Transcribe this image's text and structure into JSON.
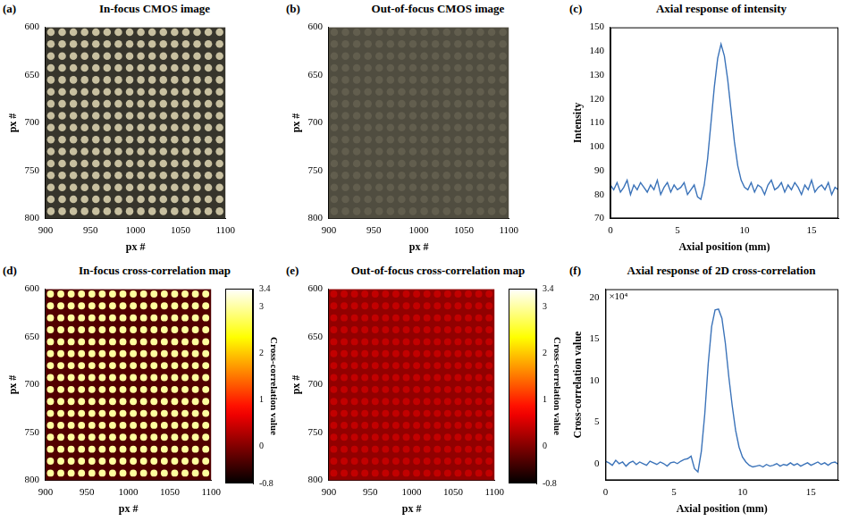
{
  "chart_data": [
    {
      "panel": "(a)",
      "type": "image",
      "title": "In-focus CMOS image",
      "xlabel": "px #",
      "ylabel": "px #",
      "xlim": [
        900,
        1100
      ],
      "xticks": [
        900,
        950,
        1000,
        1050,
        1100
      ],
      "ylim": [
        600,
        800
      ],
      "yticks": [
        600,
        650,
        700,
        750,
        800
      ],
      "grid": false,
      "spot_x": [
        906,
        918.5,
        931,
        943.5,
        956,
        968.5,
        981,
        993.5,
        1006,
        1018.5,
        1031,
        1043.5,
        1056,
        1068.5,
        1081,
        1093.5
      ],
      "spot_y": [
        605,
        617.5,
        630,
        642.5,
        655,
        667.5,
        680,
        692.5,
        705,
        717.5,
        730,
        742.5,
        755,
        767.5,
        780,
        792.5
      ],
      "spot_intensity": 200,
      "background_intensity": 55
    },
    {
      "panel": "(b)",
      "type": "image",
      "title": "Out-of-focus CMOS image",
      "xlabel": "px #",
      "ylabel": "px #",
      "xlim": [
        900,
        1100
      ],
      "xticks": [
        900,
        950,
        1000,
        1050,
        1100
      ],
      "ylim": [
        600,
        800
      ],
      "yticks": [
        600,
        650,
        700,
        750,
        800
      ],
      "grid": false,
      "spot_x": [
        906,
        918.5,
        931,
        943.5,
        956,
        968.5,
        981,
        993.5,
        1006,
        1018.5,
        1031,
        1043.5,
        1056,
        1068.5,
        1081,
        1093.5
      ],
      "spot_y": [
        605,
        617.5,
        630,
        642.5,
        655,
        667.5,
        680,
        692.5,
        705,
        717.5,
        730,
        742.5,
        755,
        767.5,
        780,
        792.5
      ],
      "spot_intensity": 98,
      "background_intensity": 80
    },
    {
      "panel": "(c)",
      "type": "line",
      "title": "Axial response of intensity",
      "xlabel": "Axial position (mm)",
      "ylabel": "Intensity",
      "xlim": [
        0,
        17
      ],
      "xticks": [
        0,
        5,
        10,
        15
      ],
      "ylim": [
        70,
        150
      ],
      "yticks": [
        70,
        80,
        90,
        100,
        110,
        120,
        130,
        140,
        150
      ],
      "grid": false,
      "color": "#3b73b9",
      "x": [
        0,
        0.25,
        0.5,
        0.75,
        1,
        1.25,
        1.5,
        1.75,
        2,
        2.25,
        2.5,
        2.75,
        3,
        3.25,
        3.5,
        3.75,
        4,
        4.25,
        4.5,
        4.75,
        5,
        5.25,
        5.5,
        5.75,
        6,
        6.25,
        6.5,
        6.75,
        7,
        7.25,
        7.5,
        7.75,
        8,
        8.25,
        8.5,
        8.75,
        9,
        9.25,
        9.5,
        9.75,
        10,
        10.25,
        10.5,
        10.75,
        11,
        11.25,
        11.5,
        11.75,
        12,
        12.25,
        12.5,
        12.75,
        13,
        13.25,
        13.5,
        13.75,
        14,
        14.25,
        14.5,
        14.75,
        15,
        15.25,
        15.5,
        15.75,
        16,
        16.25,
        16.5,
        16.75,
        17
      ],
      "values": [
        84,
        82,
        85,
        81,
        83,
        86,
        80,
        84,
        82,
        85,
        83,
        81,
        84,
        82,
        86,
        80,
        83,
        85,
        81,
        84,
        82,
        83,
        85,
        80,
        82,
        84,
        79,
        78,
        84,
        95,
        110,
        125,
        137,
        143,
        138,
        128,
        115,
        102,
        92,
        86,
        83,
        82,
        85,
        81,
        84,
        83,
        80,
        84,
        86,
        82,
        83,
        85,
        81,
        84,
        82,
        85,
        83,
        80,
        84,
        82,
        86,
        81,
        83,
        84,
        82,
        85,
        80,
        83,
        82
      ]
    },
    {
      "panel": "(d)",
      "type": "heatmap",
      "title": "In-focus cross-correlation map",
      "xlabel": "px #",
      "ylabel": "px #",
      "xlim": [
        900,
        1100
      ],
      "xticks": [
        900,
        950,
        1000,
        1050,
        1100
      ],
      "ylim": [
        600,
        800
      ],
      "yticks": [
        600,
        650,
        700,
        750,
        800
      ],
      "grid": false,
      "spot_x": [
        906,
        918.5,
        931,
        943.5,
        956,
        968.5,
        981,
        993.5,
        1006,
        1018.5,
        1031,
        1043.5,
        1056,
        1068.5,
        1081,
        1093.5
      ],
      "spot_y": [
        605,
        617.5,
        630,
        642.5,
        655,
        667.5,
        680,
        692.5,
        705,
        717.5,
        730,
        742.5,
        755,
        767.5,
        780,
        792.5
      ],
      "spot_value": 3.0,
      "background_value": -0.3,
      "colorbar": {
        "label": "Cross-correlation value",
        "range": [
          -0.8,
          3.4
        ],
        "ticks": [
          -0.8,
          0,
          1,
          2,
          3,
          3.4
        ]
      }
    },
    {
      "panel": "(e)",
      "type": "heatmap",
      "title": "Out-of-focus cross-correlation map",
      "xlabel": "px #",
      "ylabel": "px #",
      "xlim": [
        900,
        1100
      ],
      "xticks": [
        900,
        950,
        1000,
        1050,
        1100
      ],
      "ylim": [
        600,
        800
      ],
      "yticks": [
        600,
        650,
        700,
        750,
        800
      ],
      "grid": false,
      "spot_x": [
        906,
        918.5,
        931,
        943.5,
        956,
        968.5,
        981,
        993.5,
        1006,
        1018.5,
        1031,
        1043.5,
        1056,
        1068.5,
        1081,
        1093.5
      ],
      "spot_y": [
        605,
        617.5,
        630,
        642.5,
        655,
        667.5,
        680,
        692.5,
        705,
        717.5,
        730,
        742.5,
        755,
        767.5,
        780,
        792.5
      ],
      "spot_value": 0.4,
      "background_value": 0.1,
      "colorbar": {
        "label": "Cross-correlation value",
        "range": [
          -0.8,
          3.4
        ],
        "ticks": [
          -0.8,
          0,
          1,
          2,
          3,
          3.4
        ]
      }
    },
    {
      "panel": "(f)",
      "type": "line",
      "title": "Axial response of 2D cross-correlation",
      "xlabel": "Axial position (mm)",
      "ylabel": "Cross-correlation value",
      "y_exponent_label": "×10⁴",
      "xlim": [
        0,
        17
      ],
      "xticks": [
        0,
        5,
        10,
        15
      ],
      "ylim": [
        -2,
        21
      ],
      "yticks": [
        0,
        5,
        10,
        15,
        20
      ],
      "grid": false,
      "color": "#3b73b9",
      "x": [
        0,
        0.25,
        0.5,
        0.75,
        1,
        1.25,
        1.5,
        1.75,
        2,
        2.25,
        2.5,
        2.75,
        3,
        3.25,
        3.5,
        3.75,
        4,
        4.25,
        4.5,
        4.75,
        5,
        5.25,
        5.5,
        5.75,
        6,
        6.25,
        6.5,
        6.75,
        7,
        7.25,
        7.5,
        7.75,
        8,
        8.25,
        8.5,
        8.75,
        9,
        9.25,
        9.5,
        9.75,
        10,
        10.25,
        10.5,
        10.75,
        11,
        11.25,
        11.5,
        11.75,
        12,
        12.25,
        12.5,
        12.75,
        13,
        13.25,
        13.5,
        13.75,
        14,
        14.25,
        14.5,
        14.75,
        15,
        15.25,
        15.5,
        15.75,
        16,
        16.25,
        16.5,
        16.75,
        17
      ],
      "values": [
        0.3,
        0.1,
        -0.2,
        0.4,
        0,
        0.2,
        -0.3,
        0.1,
        0.3,
        -0.1,
        0.2,
        0,
        -0.2,
        0.3,
        0.1,
        -0.1,
        0.2,
        0,
        -0.3,
        0.1,
        0.2,
        0,
        0.3,
        0.5,
        0.6,
        0.9,
        -0.6,
        -1.0,
        1.5,
        6,
        12,
        16.5,
        18.5,
        18.6,
        17.5,
        14.5,
        10.5,
        7,
        4,
        2,
        0.8,
        0.2,
        -0.2,
        -0.4,
        -0.3,
        -0.2,
        -0.4,
        -0.1,
        -0.3,
        -0.2,
        0,
        -0.3,
        -0.1,
        -0.2,
        0.1,
        -0.2,
        0,
        -0.3,
        -0.1,
        0.1,
        -0.2,
        0,
        0.2,
        -0.1,
        0.1,
        -0.2,
        0.1,
        0.2,
        -0.1
      ]
    }
  ]
}
